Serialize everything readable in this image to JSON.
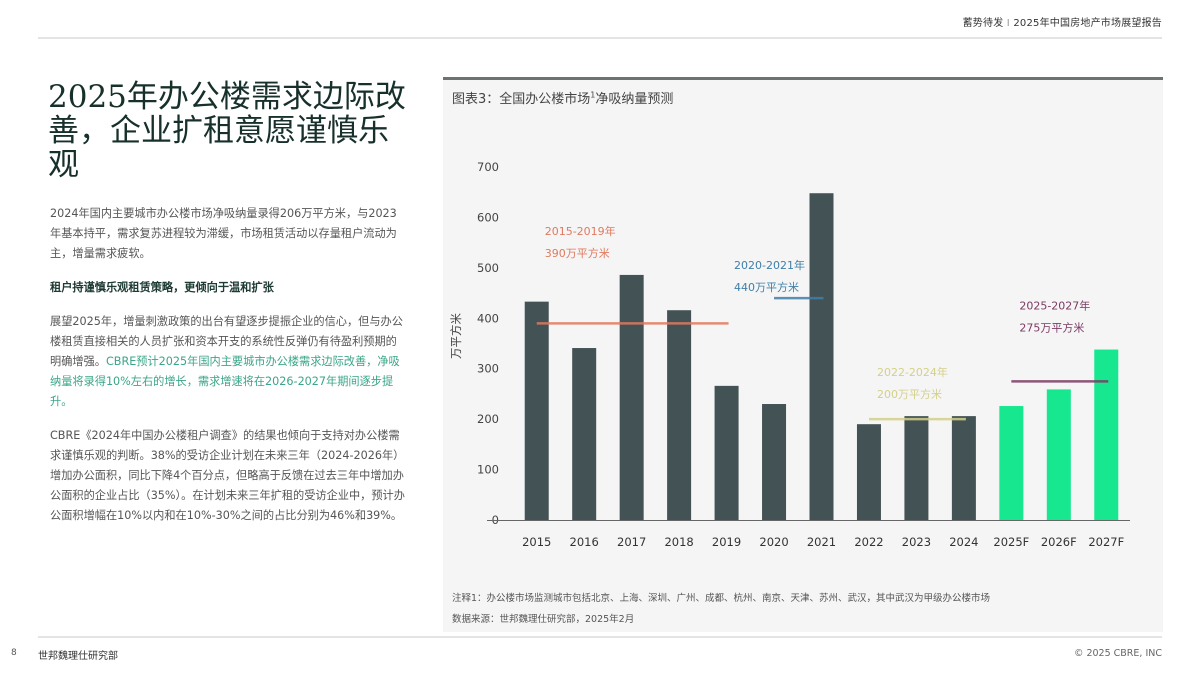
{
  "header": {
    "left": "蓄势待发",
    "separator": "I",
    "right": "2025年中国房地产市场展望报告"
  },
  "title": "2025年办公楼需求边际改善，企业扩租意愿谨慎乐观",
  "body": {
    "p1": "2024年国内主要城市办公楼市场净吸纳量录得206万平方米，与2023年基本持平，需求复苏进程较为滞缓，市场租赁活动以存量租户流动为主，增量需求疲软。",
    "subheading": "租户持谨慎乐观租赁策略，更倾向于温和扩张",
    "p2_plain": "展望2025年，增量刺激政策的出台有望逐步提振企业的信心，但与办公楼租赁直接相关的人员扩张和资本开支的系统性反弹仍有待盈利预期的明确增强。",
    "p2_highlight": "CBRE预计2025年国内主要城市办公楼需求边际改善，净吸纳量将录得10%左右的增长，需求增速将在2026-2027年期间逐步提升。",
    "p3": "CBRE《2024年中国办公楼租户调查》的结果也倾向于支持对办公楼需求谨慎乐观的判断。38%的受访企业计划在未来三年（2024-2026年）增加办公面积，同比下降4个百分点，但略高于反馈在过去三年中增加办公面积的企业占比（35%）。在计划未来三年扩租的受访企业中，预计办公面积增幅在10%以内和在10%-30%之间的占比分别为46%和39%。"
  },
  "chart_title_prefix": "图表3：全国办公楼市场",
  "chart_title_sup": "1",
  "chart_title_suffix": "净吸纳量预测",
  "chart_data": {
    "type": "bar",
    "title": "图表3：全国办公楼市场¹净吸纳量预测",
    "ylabel": "万平方米",
    "xlabel": "",
    "ylim": [
      0,
      700
    ],
    "yticks": [
      0,
      100,
      200,
      300,
      400,
      500,
      600,
      700
    ],
    "grid": false,
    "categories": [
      "2015",
      "2016",
      "2017",
      "2018",
      "2019",
      "2020",
      "2021",
      "2022",
      "2023",
      "2024",
      "2025F",
      "2026F",
      "2027F"
    ],
    "values": [
      433,
      341,
      486,
      416,
      266,
      230,
      648,
      190,
      206,
      206,
      226,
      259,
      338
    ],
    "colors": {
      "actual": "#435254",
      "forecast": "#17e88f"
    },
    "forecast_from": "2025F",
    "averages": [
      {
        "period": "2015-2019年",
        "label": "390万平方米",
        "value": 390,
        "from": "2015",
        "to": "2019",
        "color": "#e07a5f"
      },
      {
        "period": "2020-2021年",
        "label": "440万平方米",
        "value": 440,
        "from": "2020",
        "to": "2021",
        "color": "#3f7fa8"
      },
      {
        "period": "2022-2024年",
        "label": "200万平方米",
        "value": 200,
        "from": "2022",
        "to": "2024",
        "color": "#d4d08a"
      },
      {
        "period": "2025-2027年",
        "label": "275万平方米",
        "value": 275,
        "from": "2025F",
        "to": "2027F",
        "color": "#7b3b63"
      }
    ]
  },
  "notes": {
    "note1": "注释1：办公楼市场监测城市包括北京、上海、深圳、广州、成都、杭州、南京、天津、苏州、武汉，其中武汉为甲级办公楼市场",
    "source": "数据来源：世邦魏理仕研究部，2025年2月"
  },
  "footer": {
    "page": "8",
    "dept": "世邦魏理仕研究部",
    "copyright": "© 2025 CBRE, INC"
  }
}
